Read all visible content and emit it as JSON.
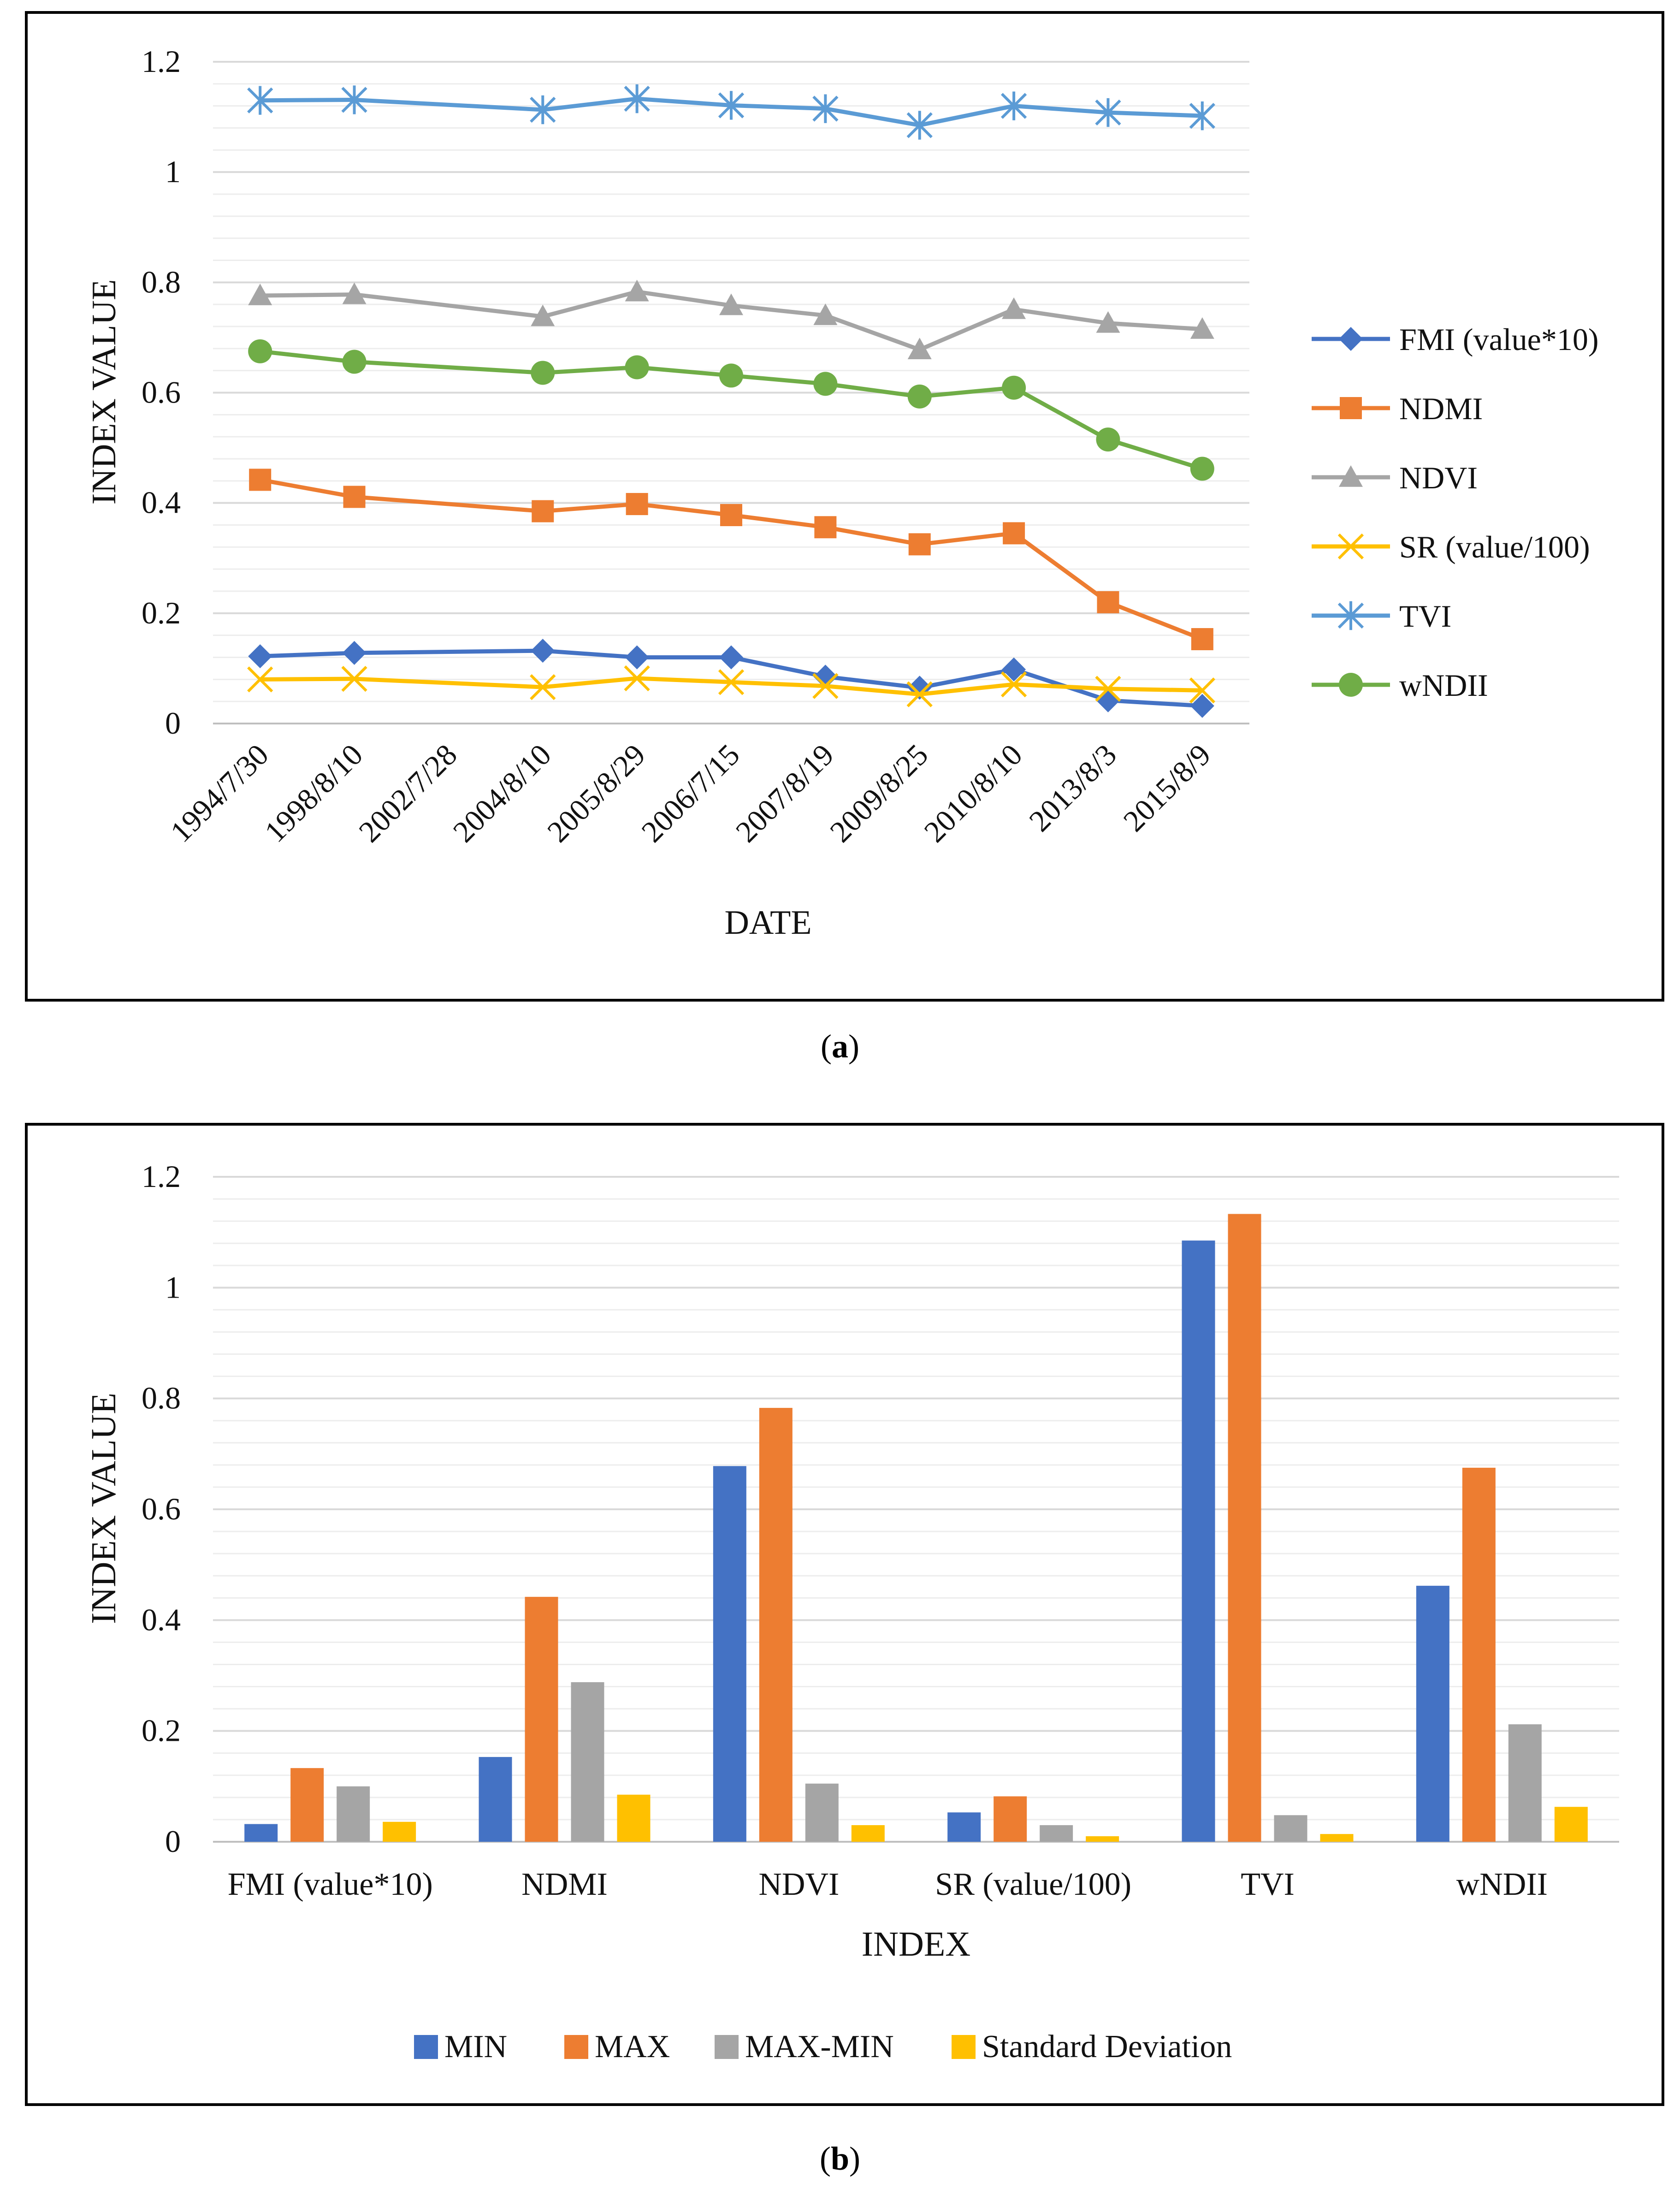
{
  "chart_data": [
    {
      "type": "line",
      "panel": "a",
      "xlabel": "DATE",
      "ylabel": "INDEX VALUE",
      "ylim": [
        0,
        1.2
      ],
      "yticks": [
        "0",
        "0.2",
        "0.4",
        "0.6",
        "0.8",
        "1",
        "1.2"
      ],
      "grid": true,
      "legend_position": "right",
      "categories": [
        "1994/7/30",
        "1998/8/10",
        "2002/7/28",
        "2004/8/10",
        "2005/8/29",
        "2006/7/15",
        "2007/8/19",
        "2009/8/25",
        "2010/8/10",
        "2013/8/3",
        "2015/8/9"
      ],
      "series": [
        {
          "name": "FMI (value*10)",
          "color": "#4472C4",
          "marker": "diamond",
          "values": [
            0.122,
            0.128,
            null,
            0.132,
            0.12,
            0.12,
            0.085,
            0.065,
            0.098,
            0.042,
            0.032
          ]
        },
        {
          "name": "NDMI",
          "color": "#ED7D31",
          "marker": "square",
          "values": [
            0.442,
            0.411,
            null,
            0.385,
            0.398,
            0.378,
            0.356,
            0.325,
            0.345,
            0.22,
            0.153
          ]
        },
        {
          "name": "NDVI",
          "color": "#A5A5A5",
          "marker": "triangle",
          "values": [
            0.776,
            0.778,
            null,
            0.738,
            0.783,
            0.758,
            0.74,
            0.678,
            0.751,
            0.726,
            0.715
          ]
        },
        {
          "name": "SR (value/100)",
          "color": "#FFC000",
          "marker": "x",
          "values": [
            0.08,
            0.081,
            null,
            0.066,
            0.082,
            0.075,
            0.068,
            0.053,
            0.071,
            0.063,
            0.06
          ]
        },
        {
          "name": "TVI",
          "color": "#5B9BD5",
          "marker": "star",
          "values": [
            1.13,
            1.131,
            null,
            1.113,
            1.133,
            1.121,
            1.115,
            1.085,
            1.12,
            1.108,
            1.102
          ]
        },
        {
          "name": "wNDII",
          "color": "#70AD47",
          "marker": "circle",
          "values": [
            0.675,
            0.656,
            null,
            0.636,
            0.646,
            0.631,
            0.616,
            0.593,
            0.609,
            0.515,
            0.462
          ]
        }
      ]
    },
    {
      "type": "bar",
      "panel": "b",
      "xlabel": "INDEX",
      "ylabel": "INDEX VALUE",
      "ylim": [
        0,
        1.2
      ],
      "yticks": [
        "0",
        "0.2",
        "0.4",
        "0.6",
        "0.8",
        "1",
        "1.2"
      ],
      "grid": true,
      "legend_position": "bottom",
      "categories": [
        "FMI (value*10)",
        "NDMI",
        "NDVI",
        "SR (value/100)",
        "TVI",
        "wNDII"
      ],
      "series": [
        {
          "name": "MIN",
          "color": "#4472C4",
          "values": [
            0.032,
            0.153,
            0.678,
            0.053,
            1.085,
            0.462
          ]
        },
        {
          "name": "MAX",
          "color": "#ED7D31",
          "values": [
            0.133,
            0.442,
            0.783,
            0.082,
            1.133,
            0.675
          ]
        },
        {
          "name": "MAX-MIN",
          "color": "#A5A5A5",
          "values": [
            0.1,
            0.288,
            0.105,
            0.03,
            0.048,
            0.212
          ]
        },
        {
          "name": "Standard Deviation",
          "color": "#FFC000",
          "values": [
            0.036,
            0.085,
            0.03,
            0.01,
            0.014,
            0.063
          ]
        }
      ]
    }
  ],
  "captions": {
    "a": "a",
    "b": "b"
  }
}
